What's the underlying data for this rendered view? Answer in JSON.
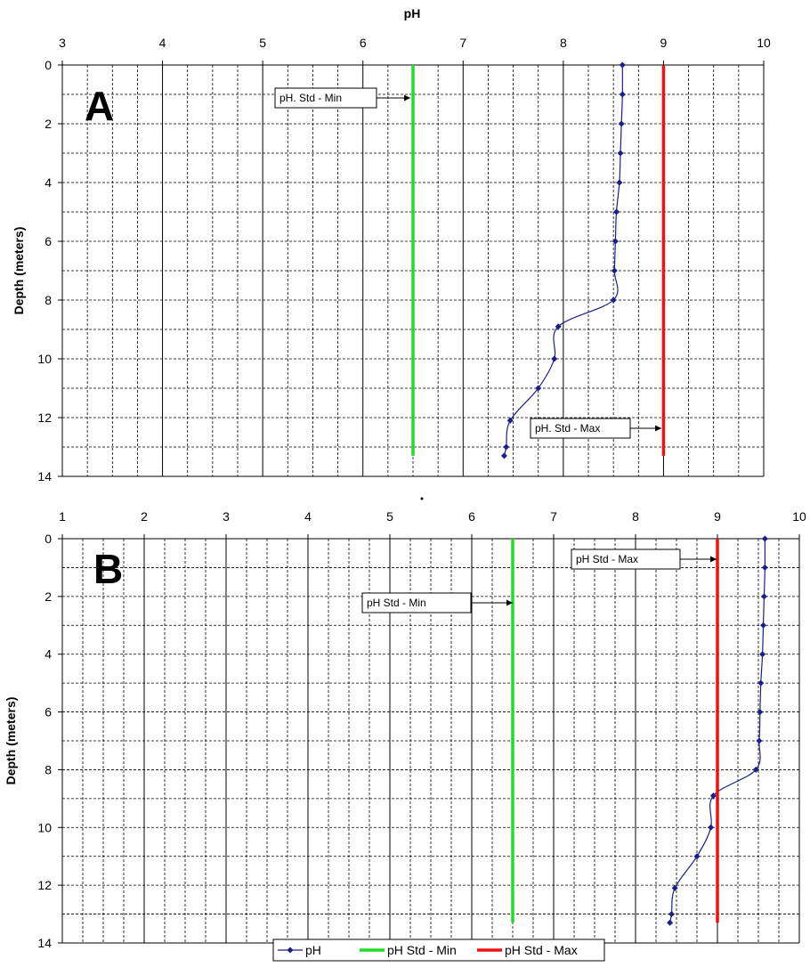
{
  "chart_data": [
    {
      "type": "line",
      "panel_label": "A",
      "x_axis_title": "pH",
      "y_axis_title": "Depth (meters)",
      "x_position": "top",
      "y_inverted": true,
      "xlim": [
        3,
        10
      ],
      "ylim": [
        0,
        14
      ],
      "x_ticks": [
        "3",
        "4",
        "5",
        "6",
        "7",
        "8",
        "9",
        "10"
      ],
      "y_ticks": [
        "0",
        "2",
        "4",
        "6",
        "8",
        "10",
        "12",
        "14"
      ],
      "grid": "major solid vertical, minor dashed vertical and dashed horizontal",
      "series": [
        {
          "name": "pH",
          "color": "#1a1f8c",
          "marker": "diamond",
          "depth": [
            0,
            1,
            2,
            3,
            4,
            5,
            6,
            7,
            8,
            8.9,
            10,
            11,
            12.1,
            13,
            13.3
          ],
          "ph": [
            8.59,
            8.59,
            8.58,
            8.57,
            8.56,
            8.53,
            8.52,
            8.51,
            8.5,
            7.95,
            7.91,
            7.75,
            7.47,
            7.43,
            7.41
          ]
        },
        {
          "name": "pH Std - Min",
          "color": "#22dd22",
          "ph": 6.5,
          "depth": [
            0,
            13.3
          ]
        },
        {
          "name": "pH Std - Max",
          "color": "#ee1111",
          "ph": 9.0,
          "depth": [
            0,
            13.3
          ]
        }
      ],
      "annotations": [
        {
          "text": "pH. Std - Min",
          "points_to": "pH Std - Min",
          "at_depth": 1.1
        },
        {
          "text": "pH. Std - Max",
          "points_to": "pH Std - Max",
          "at_depth": 12.3
        }
      ]
    },
    {
      "type": "line",
      "panel_label": "B",
      "y_axis_title": "Depth (meters)",
      "x_position": "top",
      "y_inverted": true,
      "xlim": [
        1,
        10
      ],
      "ylim": [
        0,
        14
      ],
      "x_ticks": [
        "1",
        "2",
        "3",
        "4",
        "5",
        "6",
        "7",
        "8",
        "9",
        "10"
      ],
      "y_ticks": [
        "0",
        "2",
        "4",
        "6",
        "8",
        "10",
        "12",
        "14"
      ],
      "grid": "major solid vertical, minor dashed vertical and dashed horizontal",
      "series": [
        {
          "name": "pH",
          "color": "#1a1f8c",
          "marker": "diamond",
          "depth": [
            0,
            1,
            2,
            3,
            4,
            5,
            6,
            7,
            8,
            8.9,
            10,
            11,
            12.1,
            13,
            13.3
          ],
          "ph": [
            9.58,
            9.58,
            9.57,
            9.56,
            9.55,
            9.53,
            9.52,
            9.51,
            9.47,
            8.95,
            8.92,
            8.75,
            8.48,
            8.44,
            8.42
          ]
        },
        {
          "name": "pH Std - Min",
          "color": "#22dd22",
          "ph": 6.5,
          "depth": [
            0,
            13.3
          ]
        },
        {
          "name": "pH Std - Max",
          "color": "#ee1111",
          "ph": 9.0,
          "depth": [
            0,
            13.3
          ]
        }
      ],
      "annotations": [
        {
          "text": "pH Std - Max",
          "points_to": "pH Std - Max",
          "at_depth": 1.8
        },
        {
          "text": "pH Std - Min",
          "points_to": "pH Std - Min",
          "at_depth": 3.3
        }
      ]
    }
  ],
  "legend": {
    "placement": "bottom-center",
    "items": [
      {
        "label": "pH",
        "color": "#1a1f8c",
        "marker": "diamond"
      },
      {
        "label": "pH Std - Min",
        "color": "#22dd22"
      },
      {
        "label": "pH Std - Max",
        "color": "#ee1111"
      }
    ]
  }
}
